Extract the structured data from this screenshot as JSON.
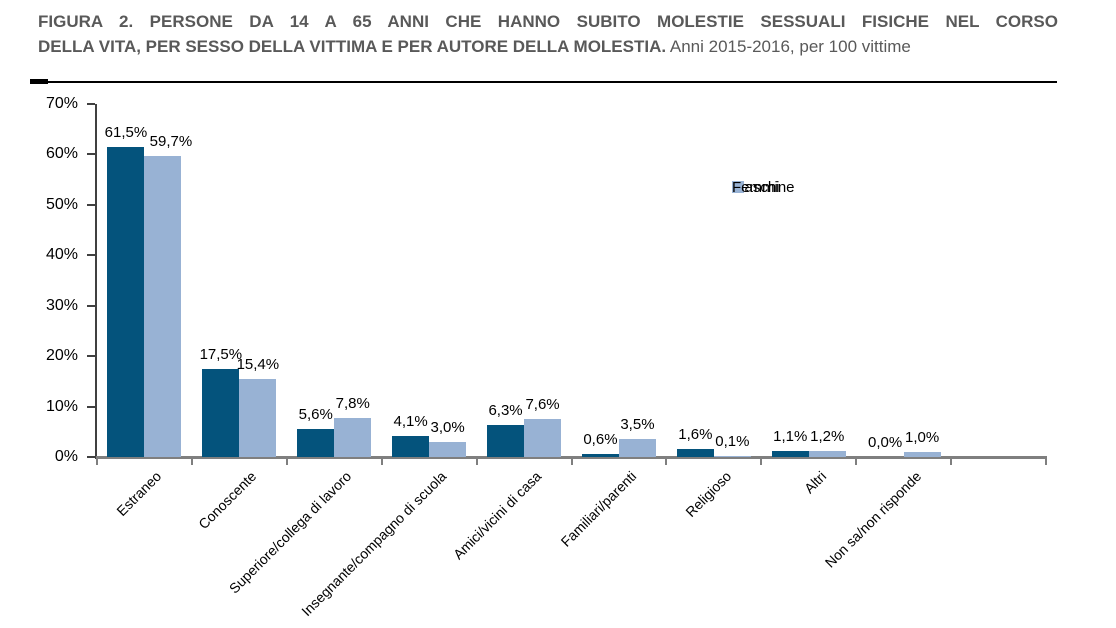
{
  "title": {
    "line1": "FIGURA 2. PERSONE DA 14 A 65 ANNI CHE HANNO SUBITO MOLESTIE SESSUALI FISICHE NEL CORSO",
    "line2_bold": "DELLA VITA, PER SESSO DELLA VITTIMA E PER AUTORE DELLA MOLESTIA.",
    "line2_subtitle": " Anni 2015-2016, per 100 vittime"
  },
  "chart_data": {
    "type": "bar",
    "title": "Persone da 14 a 65 anni che hanno subito molestie sessuali fisiche nel corso della vita, per sesso della vittima e per autore della molestia",
    "subtitle": "Anni 2015-2016, per 100 vittime",
    "categories": [
      "Estraneo",
      "Conoscente",
      "Superiore/collega di lavoro",
      "Insegnante/compagno di scuola",
      "Amici/vicini di casa",
      "Familiari/parenti",
      "Religioso",
      "Altri",
      "Non sa/non risponde"
    ],
    "series": [
      {
        "name": "Maschi",
        "color": "#04537C",
        "values": [
          61.5,
          17.5,
          5.6,
          4.1,
          6.3,
          0.6,
          1.6,
          1.1,
          0.0
        ]
      },
      {
        "name": "Femmine",
        "color": "#98B2D4",
        "values": [
          59.7,
          15.4,
          7.8,
          3.0,
          7.6,
          3.5,
          0.1,
          1.2,
          1.0
        ]
      }
    ],
    "value_labels": [
      [
        "61,5%",
        "17,5%",
        "5,6%",
        "4,1%",
        "6,3%",
        "0,6%",
        "1,6%",
        "1,1%",
        "0,0%"
      ],
      [
        "59,7%",
        "15,4%",
        "7,8%",
        "3,0%",
        "7,6%",
        "3,5%",
        "0,1%",
        "1,2%",
        "1,0%"
      ]
    ],
    "ylim": [
      0,
      70
    ],
    "ytick_step": 10,
    "ytick_labels": [
      "0%",
      "10%",
      "20%",
      "30%",
      "40%",
      "50%",
      "60%",
      "70%"
    ],
    "xlabel": "",
    "ylabel": "",
    "grid": false,
    "legend_position": "top-right-inside"
  }
}
